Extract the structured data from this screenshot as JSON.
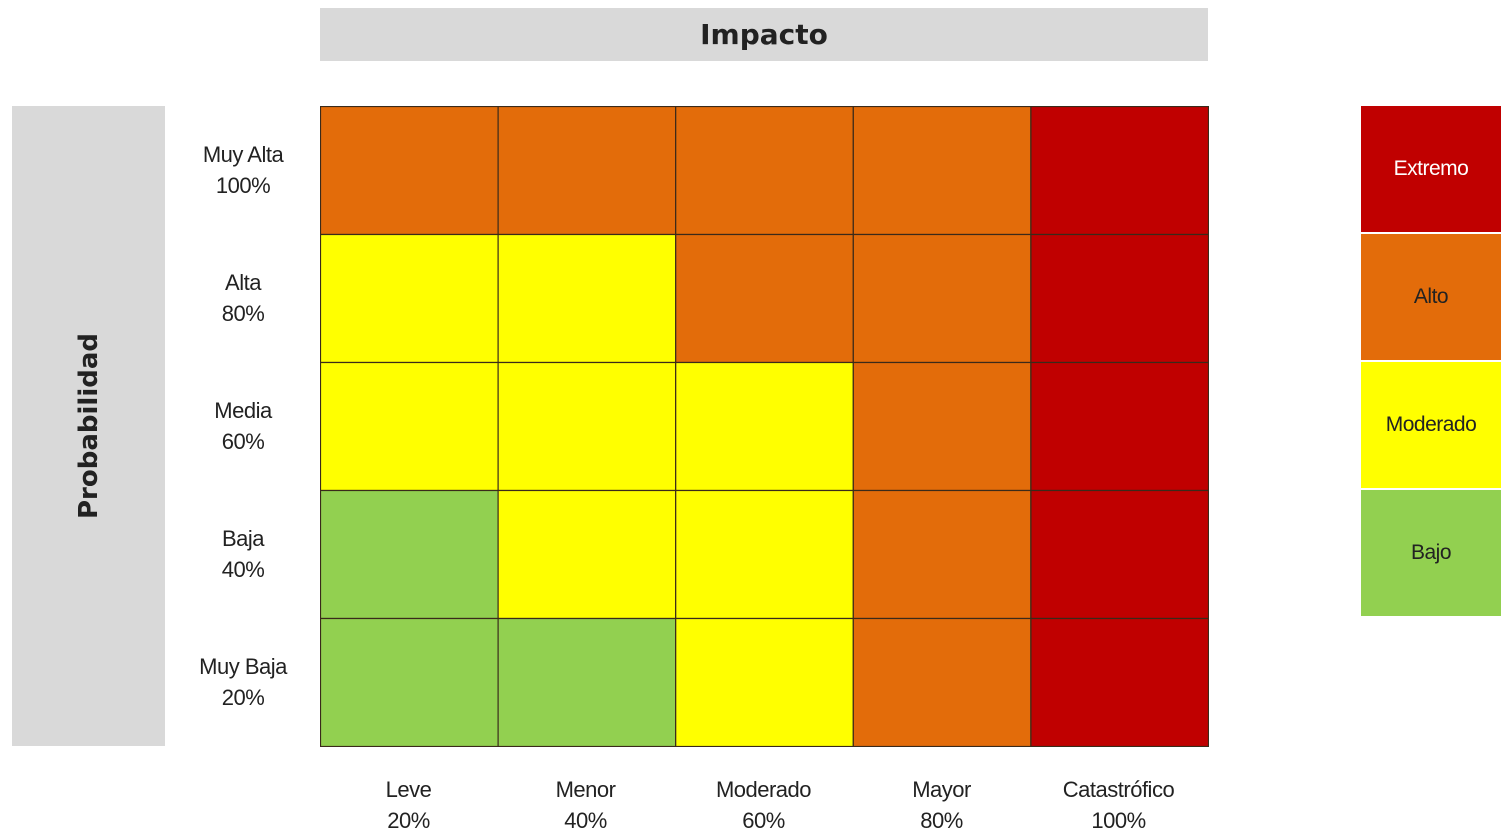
{
  "chart_data": {
    "type": "heatmap",
    "title": "Impacto",
    "ylabel": "Probabilidad",
    "rows": [
      {
        "name": "Muy Alta",
        "pct": "100%"
      },
      {
        "name": "Alta",
        "pct": "80%"
      },
      {
        "name": "Media",
        "pct": "60%"
      },
      {
        "name": "Baja",
        "pct": "40%"
      },
      {
        "name": "Muy Baja",
        "pct": "20%"
      }
    ],
    "columns": [
      {
        "name": "Leve",
        "pct": "20%"
      },
      {
        "name": "Menor",
        "pct": "40%"
      },
      {
        "name": "Moderado",
        "pct": "60%"
      },
      {
        "name": "Mayor",
        "pct": "80%"
      },
      {
        "name": "Catastrófico",
        "pct": "100%"
      }
    ],
    "cells": [
      [
        "Alto",
        "Alto",
        "Alto",
        "Alto",
        "Extremo"
      ],
      [
        "Moderado",
        "Moderado",
        "Alto",
        "Alto",
        "Extremo"
      ],
      [
        "Moderado",
        "Moderado",
        "Moderado",
        "Alto",
        "Extremo"
      ],
      [
        "Bajo",
        "Moderado",
        "Moderado",
        "Alto",
        "Extremo"
      ],
      [
        "Bajo",
        "Bajo",
        "Moderado",
        "Alto",
        "Extremo"
      ]
    ],
    "legend": [
      {
        "label": "Extremo",
        "color": "#c00000"
      },
      {
        "label": "Alto",
        "color": "#e36c0a"
      },
      {
        "label": "Moderado",
        "color": "#ffff00"
      },
      {
        "label": "Bajo",
        "color": "#92d050"
      }
    ],
    "legend_position": "right"
  }
}
